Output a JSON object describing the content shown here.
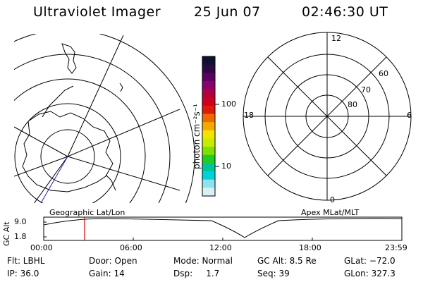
{
  "header": {
    "instrument": "Ultraviolet Imager",
    "date": "25 Jun 07",
    "time": "02:46:30 UT"
  },
  "geo_panel": {
    "label": "Geographic Lat/Lon"
  },
  "apex_panel": {
    "label": "Apex MLat/MLT",
    "mlt_labels": {
      "top": "12",
      "left": "18",
      "right": "6",
      "bottom": "0"
    },
    "lat_labels": [
      "60",
      "70",
      "80"
    ]
  },
  "colorbar": {
    "unit": "photon cm⁻²s⁻¹",
    "tick_labels": [
      "100",
      "10"
    ],
    "colors": [
      "#101030",
      "#2a0a40",
      "#5a0060",
      "#8a0070",
      "#b00040",
      "#d0001c",
      "#e01a0a",
      "#ee6a00",
      "#f7a800",
      "#f2e400",
      "#c8ec00",
      "#7fe000",
      "#22cc22",
      "#00c49a",
      "#00d2dc",
      "#8ee4ee",
      "#d6f0f4"
    ]
  },
  "timeline": {
    "y_axis_label": "GC Alt",
    "y_ticks": [
      "9.0",
      "1.8"
    ],
    "x_ticks": [
      "00:00",
      "06:00",
      "12:00",
      "18:00",
      "23:59"
    ],
    "marker_color": "#d00000"
  },
  "footer": {
    "row1": [
      "Flt: LBHL",
      "Door: Open",
      "Mode: Normal",
      "GC Alt: 8.5 Re",
      "GLat: −72.0"
    ],
    "row2": [
      "IP: 36.0",
      "Gain: 14",
      "Dsp:     1.7",
      "Seq: 39",
      "GLon: 327.3"
    ]
  }
}
